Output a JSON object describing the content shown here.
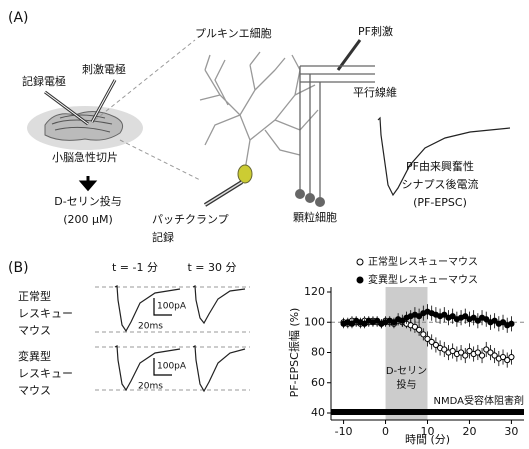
{
  "panel_a": {
    "label": "(A)",
    "purkinje": "プルキンエ細胞",
    "pf_stim": "PF刺激",
    "rec_electrode": "記録電極",
    "stim_electrode": "刺激電極",
    "parallel_fiber": "平行線維",
    "slice": "小脳急性切片",
    "epsc": [
      "PF由来興奮性",
      "シナプス後電流",
      "(PF-EPSC)"
    ],
    "dserine": [
      "D-セリン投与",
      "(200 μM)"
    ],
    "patch": [
      "パッチクランプ",
      "記録"
    ],
    "granule": "顆粒細胞"
  },
  "panel_b": {
    "label": "(B)",
    "t_before": "t = -1 分",
    "t_after": "t = 30 分",
    "normal": [
      "正常型",
      "レスキュー",
      "マウス"
    ],
    "mutant": [
      "変異型",
      "レスキュー",
      "マウス"
    ],
    "scale_current": "100pA",
    "scale_time": "20ms"
  },
  "chart_data": {
    "type": "scatter",
    "xlabel": "時間 (分)",
    "ylabel": "PF-EPSC振幅 (%)",
    "x": [
      -10,
      -9,
      -8,
      -7,
      -6,
      -5,
      -4,
      -3,
      -2,
      -1,
      0,
      1,
      2,
      3,
      4,
      5,
      6,
      7,
      8,
      9,
      10,
      11,
      12,
      13,
      14,
      15,
      16,
      17,
      18,
      19,
      20,
      21,
      22,
      23,
      24,
      25,
      26,
      27,
      28,
      29,
      30
    ],
    "series": [
      {
        "name": "正常型レスキューマウス",
        "color": "#000000",
        "filled": false,
        "values": [
          100,
          99,
          101,
          100,
          99,
          101,
          100,
          101,
          100,
          99,
          101,
          100,
          99,
          101,
          100,
          99,
          98,
          97,
          95,
          92,
          89,
          87,
          85,
          83,
          82,
          80,
          81,
          79,
          80,
          78,
          81,
          79,
          80,
          78,
          82,
          80,
          78,
          76,
          77,
          75,
          77
        ],
        "errors": [
          3,
          3,
          3,
          3,
          3,
          3,
          3,
          3,
          3,
          3,
          3,
          3,
          3,
          3,
          3,
          3,
          4,
          4,
          4,
          4,
          5,
          5,
          5,
          5,
          5,
          5,
          5,
          5,
          5,
          5,
          5,
          5,
          5,
          5,
          5,
          5,
          5,
          5,
          5,
          5,
          5
        ]
      },
      {
        "name": "変異型レスキューマウス",
        "color": "#000000",
        "filled": true,
        "values": [
          99,
          100,
          99,
          101,
          100,
          99,
          101,
          100,
          101,
          99,
          100,
          101,
          100,
          102,
          101,
          103,
          104,
          105,
          104,
          106,
          107,
          106,
          105,
          104,
          105,
          103,
          104,
          102,
          103,
          104,
          102,
          103,
          101,
          103,
          102,
          100,
          101,
          99,
          100,
          98,
          99
        ],
        "errors": [
          3,
          3,
          3,
          3,
          3,
          3,
          3,
          3,
          3,
          3,
          3,
          3,
          3,
          4,
          4,
          4,
          4,
          5,
          5,
          5,
          5,
          5,
          5,
          5,
          5,
          5,
          5,
          5,
          5,
          5,
          5,
          5,
          5,
          5,
          5,
          5,
          5,
          5,
          5,
          5,
          5
        ]
      }
    ],
    "xlim": [
      -13,
      33
    ],
    "ylim": [
      40,
      120
    ],
    "xticks": [
      -10,
      0,
      10,
      20,
      30
    ],
    "yticks": [
      40,
      60,
      80,
      100,
      120
    ],
    "ref_line": 100,
    "shade": [
      0,
      10
    ],
    "shade_label": [
      "D-セリン",
      "投与"
    ],
    "bar_label": "NMDA受容体阻害剤"
  }
}
